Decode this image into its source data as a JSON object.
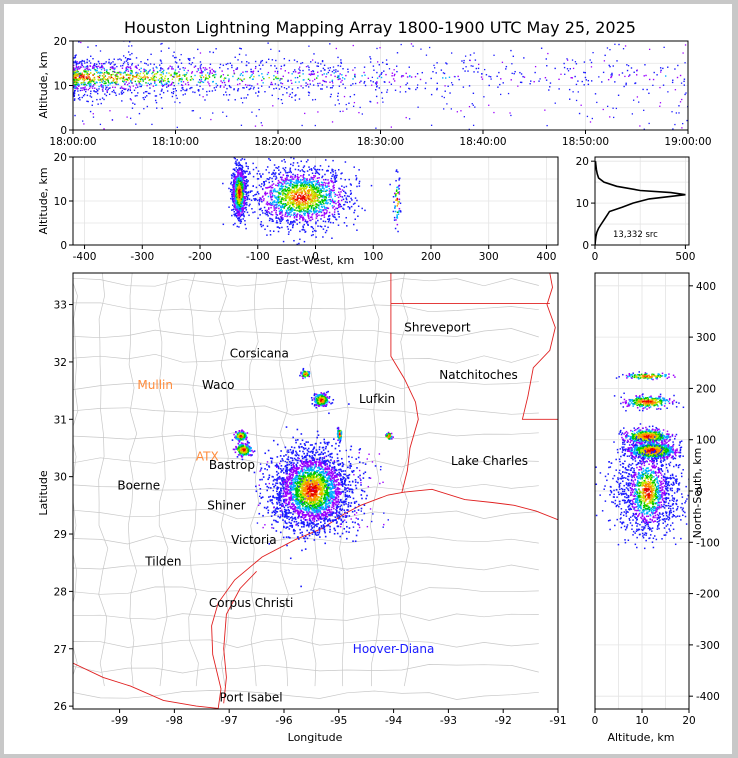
{
  "title": "Houston Lightning Mapping Array 1800-1900 UTC May 25, 2025",
  "colors": {
    "state_border": "#e02020",
    "county_border": "#c8c8c8",
    "orange_label": "#ff8c3c",
    "blue_label": "#1a1aff",
    "density_ramp": [
      "#1a1aff",
      "#9b00ff",
      "#00b0ff",
      "#00c800",
      "#c8e600",
      "#ff8c00",
      "#e60000"
    ]
  },
  "chart_data": [
    {
      "id": "altitude_time",
      "type": "scatter",
      "ylabel": "Altitude, km",
      "ylim": [
        0,
        20
      ],
      "y_ticks": [
        "0",
        "10",
        "20"
      ],
      "x_ticks": [
        "18:00:00",
        "18:10:00",
        "18:20:00",
        "18:30:00",
        "18:40:00",
        "18:50:00",
        "19:00:00"
      ],
      "xlim_minutes": [
        0,
        60
      ],
      "core_altitude_km": 12
    },
    {
      "id": "eastwest_altitude",
      "type": "scatter",
      "xlabel": "East-West, km",
      "ylabel": "Altitude, km",
      "xlim": [
        -420,
        420
      ],
      "ylim": [
        0,
        20
      ],
      "x_ticks": [
        "-400",
        "-300",
        "-200",
        "-100",
        "0",
        "100",
        "200",
        "300",
        "400"
      ],
      "y_ticks": [
        "0",
        "10",
        "20"
      ],
      "clusters_km": [
        {
          "x": -133,
          "spread": 6,
          "z": 12
        },
        {
          "x": -25,
          "spread": 40,
          "z": 11
        },
        {
          "x": 140,
          "spread": 3,
          "z": 10
        }
      ]
    },
    {
      "id": "altitude_histogram",
      "type": "line",
      "xlim": [
        0,
        520
      ],
      "ylim": [
        0,
        21
      ],
      "x_ticks": [
        "0",
        "500"
      ],
      "y_ticks": [
        "0",
        "10",
        "20"
      ],
      "annotation": "13,332 src",
      "profile": [
        [
          0,
          0
        ],
        [
          2,
          1
        ],
        [
          5,
          2
        ],
        [
          10,
          3
        ],
        [
          20,
          4
        ],
        [
          35,
          5
        ],
        [
          50,
          6
        ],
        [
          65,
          7
        ],
        [
          80,
          8
        ],
        [
          150,
          9
        ],
        [
          210,
          10
        ],
        [
          300,
          11
        ],
        [
          500,
          12
        ],
        [
          420,
          12.5
        ],
        [
          250,
          13
        ],
        [
          120,
          14
        ],
        [
          50,
          15
        ],
        [
          20,
          16
        ],
        [
          12,
          17
        ],
        [
          8,
          18
        ],
        [
          5,
          19
        ],
        [
          3,
          20
        ]
      ]
    },
    {
      "id": "plan_view_map",
      "type": "map",
      "xlabel": "Longitude",
      "ylabel": "Latitude",
      "xlim": [
        -99.85,
        -91.0
      ],
      "ylim": [
        25.95,
        33.55
      ],
      "x_ticks": [
        "-99",
        "-98",
        "-97",
        "-96",
        "-95",
        "-94",
        "-93",
        "-92",
        "-91"
      ],
      "y_ticks": [
        "26",
        "27",
        "28",
        "29",
        "30",
        "31",
        "32",
        "33"
      ],
      "cities": [
        {
          "name": "Shreveport",
          "lon": -93.2,
          "lat": 32.6,
          "color": "#000000"
        },
        {
          "name": "Corsicana",
          "lon": -96.45,
          "lat": 32.15,
          "color": "#000000"
        },
        {
          "name": "Natchitoches",
          "lon": -92.45,
          "lat": 31.77,
          "color": "#000000"
        },
        {
          "name": "Mullin",
          "lon": -98.35,
          "lat": 31.6,
          "color": "#ff8c3c"
        },
        {
          "name": "Waco",
          "lon": -97.2,
          "lat": 31.6,
          "color": "#000000"
        },
        {
          "name": "Lufkin",
          "lon": -94.3,
          "lat": 31.35,
          "color": "#000000"
        },
        {
          "name": "ATX",
          "lon": -97.4,
          "lat": 30.35,
          "color": "#ff8c3c"
        },
        {
          "name": "Bastrop",
          "lon": -96.95,
          "lat": 30.2,
          "color": "#000000"
        },
        {
          "name": "Lake Charles",
          "lon": -92.25,
          "lat": 30.27,
          "color": "#000000"
        },
        {
          "name": "Boerne",
          "lon": -98.65,
          "lat": 29.85,
          "color": "#000000"
        },
        {
          "name": "Shiner",
          "lon": -97.05,
          "lat": 29.5,
          "color": "#000000"
        },
        {
          "name": "Victoria",
          "lon": -96.55,
          "lat": 28.9,
          "color": "#000000"
        },
        {
          "name": "Tilden",
          "lon": -98.2,
          "lat": 28.52,
          "color": "#000000"
        },
        {
          "name": "Corpus Christi",
          "lon": -96.6,
          "lat": 27.8,
          "color": "#000000"
        },
        {
          "name": "Hoover-Diana",
          "lon": -94.0,
          "lat": 27.0,
          "color": "#1a1aff"
        },
        {
          "name": "Port Isabel",
          "lon": -96.6,
          "lat": 26.15,
          "color": "#000000"
        }
      ],
      "clusters": [
        {
          "lon": -95.5,
          "lat": 29.78,
          "slon": 0.35,
          "slat": 0.35,
          "weight": 2500
        },
        {
          "lon": -96.75,
          "lat": 30.48,
          "slon": 0.07,
          "slat": 0.05,
          "weight": 300
        },
        {
          "lon": -95.33,
          "lat": 31.35,
          "slon": 0.06,
          "slat": 0.05,
          "weight": 300
        },
        {
          "lon": -96.8,
          "lat": 30.72,
          "slon": 0.05,
          "slat": 0.04,
          "weight": 150
        },
        {
          "lon": -95.62,
          "lat": 31.8,
          "slon": 0.04,
          "slat": 0.03,
          "weight": 80
        },
        {
          "lon": -94.1,
          "lat": 30.72,
          "slon": 0.03,
          "slat": 0.03,
          "weight": 60
        },
        {
          "lon": -95.0,
          "lat": 30.75,
          "slon": 0.02,
          "slat": 0.05,
          "weight": 60
        }
      ]
    },
    {
      "id": "altitude_northsouth",
      "type": "scatter",
      "xlabel": "Altitude, km",
      "ylabel": "North-South, km",
      "xlim": [
        0,
        20
      ],
      "ylim": [
        -425,
        425
      ],
      "x_ticks": [
        "0",
        "10",
        "20"
      ],
      "y_ticks": [
        "-400",
        "-300",
        "-200",
        "-100",
        "0",
        "100",
        "200",
        "300",
        "400"
      ],
      "bands_km": [
        {
          "y": 225,
          "spread": 3,
          "z": 11
        },
        {
          "y": 175,
          "spread": 6,
          "z": 11
        },
        {
          "y": 108,
          "spread": 7,
          "z": 11
        },
        {
          "y": 80,
          "spread": 8,
          "z": 12
        },
        {
          "y": 0,
          "spread": 40,
          "z": 11
        }
      ]
    }
  ]
}
